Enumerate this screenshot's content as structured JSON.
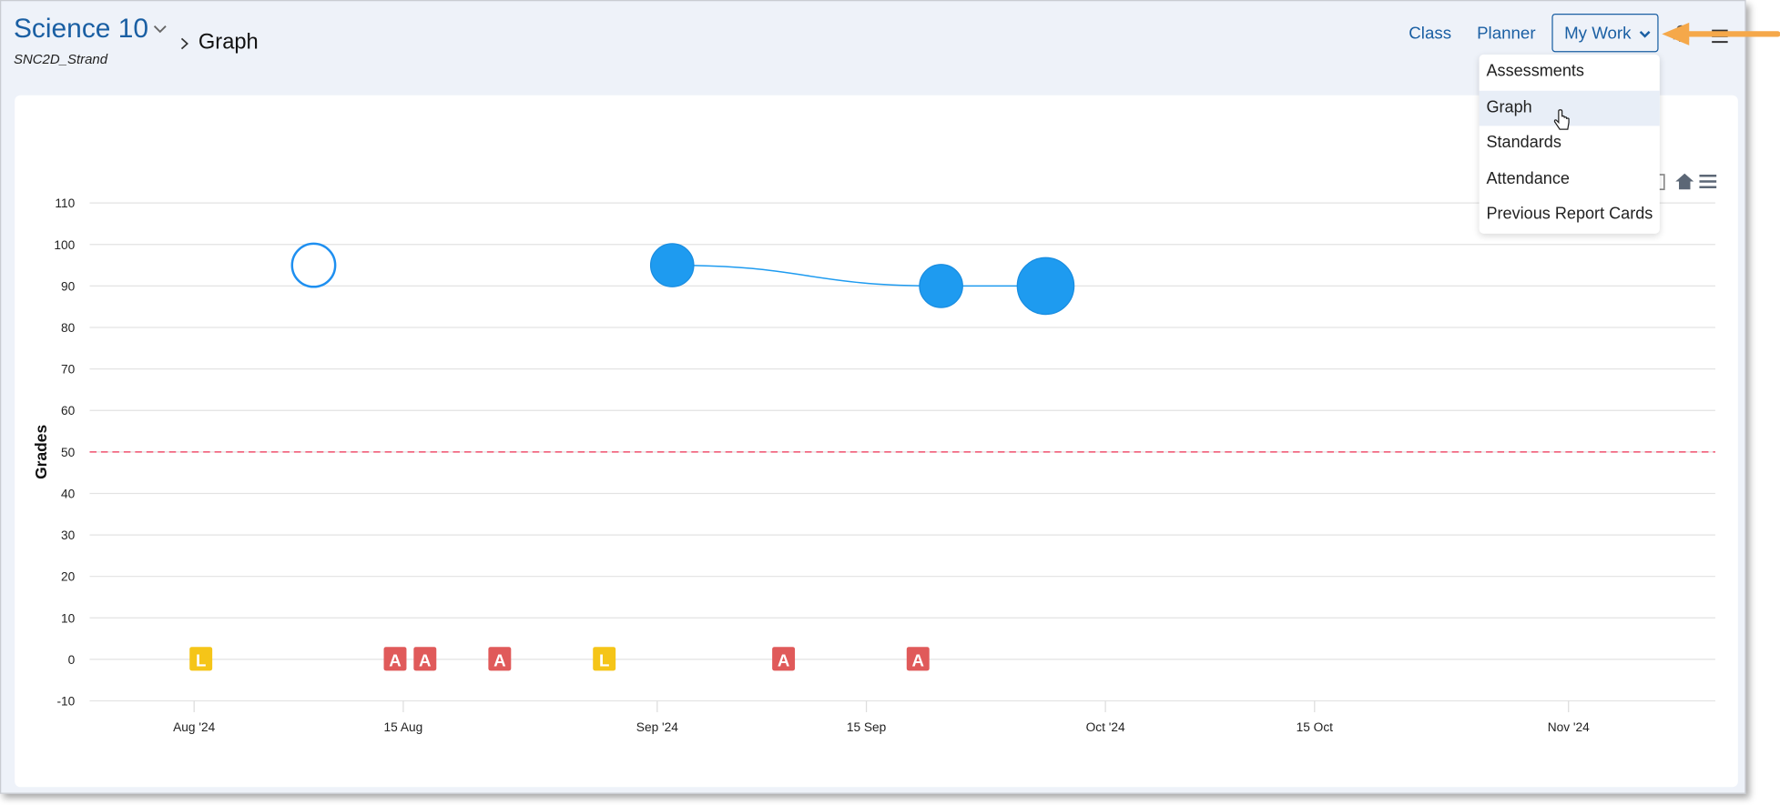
{
  "header": {
    "course_title": "Science 10",
    "course_code": "SNC2D_Strand",
    "breadcrumb_current": "Graph"
  },
  "nav": {
    "class_label": "Class",
    "planner_label": "Planner",
    "mywork_label": "My Work"
  },
  "dropdown": {
    "items": [
      {
        "label": "Assessments"
      },
      {
        "label": "Graph",
        "highlighted": true
      },
      {
        "label": "Standards"
      },
      {
        "label": "Attendance"
      },
      {
        "label": "Previous Report Cards"
      }
    ]
  },
  "chart_toolbar": {
    "icons": [
      "download-icon",
      "home-icon",
      "menu-icon"
    ]
  },
  "colors": {
    "accent": "#1a5fa3",
    "point": "#1e9bf0",
    "threshold": "#f0506e",
    "late": "#f5c518",
    "absent": "#e05a5a",
    "annotation_arrow": "#f5a84a"
  },
  "chart_data": {
    "type": "scatter",
    "ylabel": "Grades",
    "xlabel": "",
    "ylim": [
      -10,
      110
    ],
    "yticks": [
      -10,
      0,
      10,
      20,
      30,
      40,
      50,
      60,
      70,
      80,
      90,
      100,
      110
    ],
    "xticks": [
      {
        "date": "2024-08-01",
        "label": "Aug '24"
      },
      {
        "date": "2024-08-15",
        "label": "15 Aug"
      },
      {
        "date": "2024-09-01",
        "label": "Sep '24"
      },
      {
        "date": "2024-09-15",
        "label": "15 Sep"
      },
      {
        "date": "2024-10-01",
        "label": "Oct '24"
      },
      {
        "date": "2024-10-15",
        "label": "15 Oct"
      },
      {
        "date": "2024-11-01",
        "label": "Nov '24"
      }
    ],
    "grid": true,
    "threshold": 50,
    "points": [
      {
        "date": "2024-08-09",
        "value": 95,
        "hollow": true,
        "size": "medium"
      },
      {
        "date": "2024-09-02",
        "value": 95,
        "hollow": false,
        "size": "medium"
      },
      {
        "date": "2024-09-20",
        "value": 90,
        "hollow": false,
        "size": "medium"
      },
      {
        "date": "2024-09-27",
        "value": 90,
        "hollow": false,
        "size": "large"
      }
    ],
    "trend_line": [
      {
        "date": "2024-09-02",
        "value": 95
      },
      {
        "date": "2024-09-20",
        "value": 90
      },
      {
        "date": "2024-09-27",
        "value": 90
      }
    ],
    "attendance_markers": [
      {
        "date": "2024-08-01",
        "label": "L"
      },
      {
        "date": "2024-08-14",
        "label": "A"
      },
      {
        "date": "2024-08-16",
        "label": "A"
      },
      {
        "date": "2024-08-21",
        "label": "A"
      },
      {
        "date": "2024-08-28",
        "label": "L"
      },
      {
        "date": "2024-09-09",
        "label": "A"
      },
      {
        "date": "2024-09-18",
        "label": "A"
      }
    ]
  }
}
